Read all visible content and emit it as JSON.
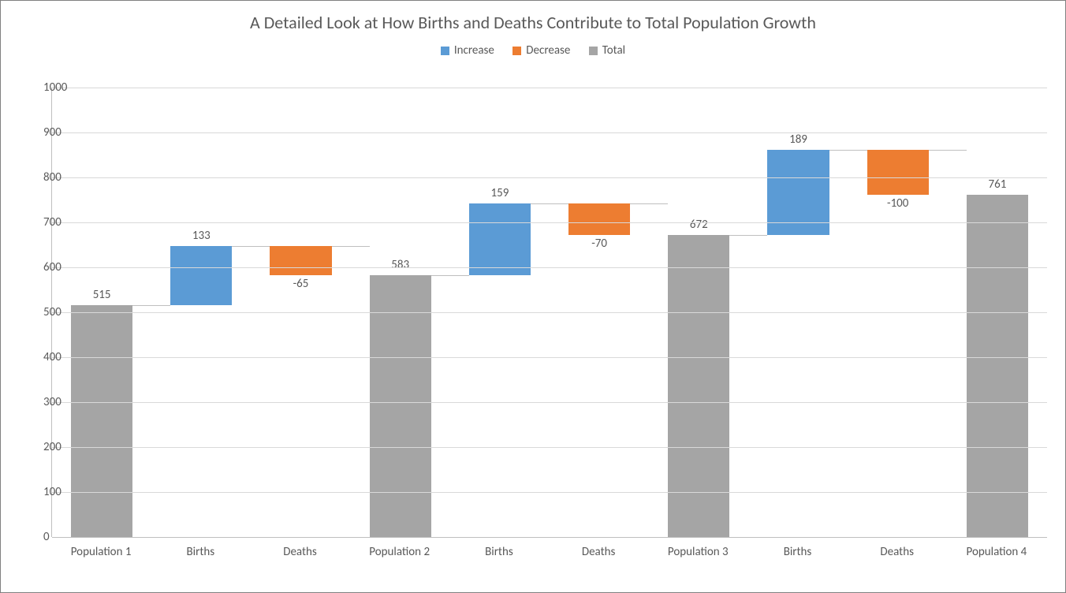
{
  "chart": {
    "type": "waterfall-bar",
    "title": "A Detailed Look at How Births and Deaths Contribute to Total Population Growth",
    "title_fontsize": 22,
    "label_fontsize": 15,
    "background_color": "#ffffff",
    "frame_border_color": "#808080",
    "grid_color": "#d9d9d9",
    "axis_color": "#bfbfbf",
    "text_color": "#595959",
    "font_family": "Calibri, Segoe UI, Arial, sans-serif",
    "legend": {
      "position": "top-center",
      "items": [
        {
          "label": "Increase",
          "color": "#5b9bd5"
        },
        {
          "label": "Decrease",
          "color": "#ed7d31"
        },
        {
          "label": "Total",
          "color": "#a5a5a5"
        }
      ]
    },
    "y_axis": {
      "min": 0,
      "max": 1000,
      "tick_step": 100,
      "ticks": [
        0,
        100,
        200,
        300,
        400,
        500,
        600,
        700,
        800,
        900,
        1000
      ]
    },
    "bar_width_ratio": 0.62,
    "connector_color": "#bfbfbf",
    "categories": [
      "Population 1",
      "Births",
      "Deaths",
      "Population 2",
      "Births",
      "Deaths",
      "Population 3",
      "Births",
      "Deaths",
      "Population 4"
    ],
    "bars": [
      {
        "category": "Population 1",
        "series": "Total",
        "base": 0,
        "top": 515,
        "value_label": "515",
        "color": "#a5a5a5"
      },
      {
        "category": "Births",
        "series": "Increase",
        "base": 515,
        "top": 648,
        "value_label": "133",
        "color": "#5b9bd5"
      },
      {
        "category": "Deaths",
        "series": "Decrease",
        "base": 583,
        "top": 648,
        "value_label": "-65",
        "color": "#ed7d31",
        "label_position": "below"
      },
      {
        "category": "Population 2",
        "series": "Total",
        "base": 0,
        "top": 583,
        "value_label": "583",
        "color": "#a5a5a5"
      },
      {
        "category": "Births",
        "series": "Increase",
        "base": 583,
        "top": 742,
        "value_label": "159",
        "color": "#5b9bd5"
      },
      {
        "category": "Deaths",
        "series": "Decrease",
        "base": 672,
        "top": 742,
        "value_label": "-70",
        "color": "#ed7d31",
        "label_position": "below"
      },
      {
        "category": "Population 3",
        "series": "Total",
        "base": 0,
        "top": 672,
        "value_label": "672",
        "color": "#a5a5a5"
      },
      {
        "category": "Births",
        "series": "Increase",
        "base": 672,
        "top": 861,
        "value_label": "189",
        "color": "#5b9bd5"
      },
      {
        "category": "Deaths",
        "series": "Decrease",
        "base": 761,
        "top": 861,
        "value_label": "-100",
        "color": "#ed7d31",
        "label_position": "below"
      },
      {
        "category": "Population 4",
        "series": "Total",
        "base": 0,
        "top": 761,
        "value_label": "761",
        "color": "#a5a5a5"
      }
    ]
  }
}
